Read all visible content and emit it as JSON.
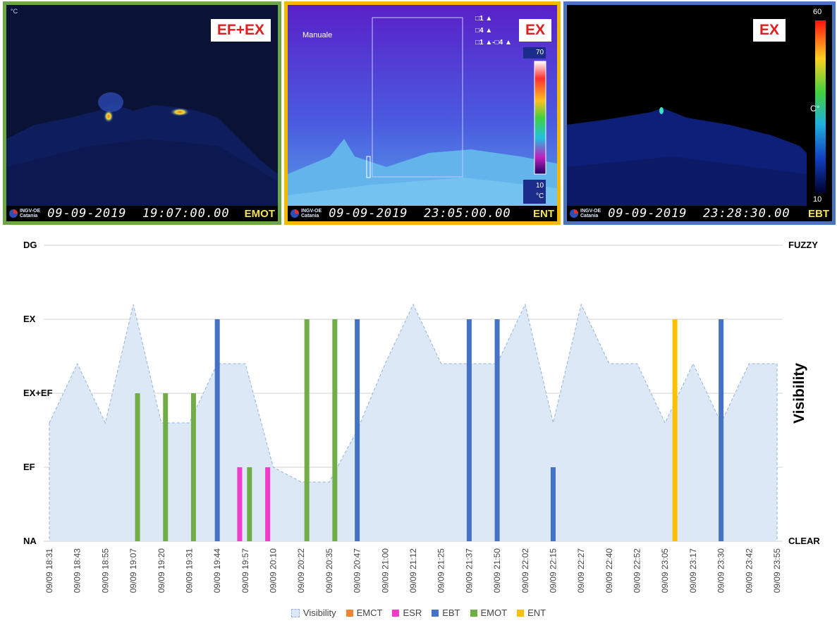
{
  "panels": [
    {
      "badge": "EF+EX",
      "datetime": "09-09-2019  19:07:00.00",
      "code": "EMOT",
      "unit": "°C",
      "logo": {
        "l1": "INGV-OE",
        "l2": "Catania"
      }
    },
    {
      "badge": "EX",
      "datetime": "09-09-2019  23:05:00.00",
      "code": "ENT",
      "mode": "Manuale",
      "legend_lines": [
        "□1 ▲",
        "□4 ▲",
        "□1 ▲-□4 ▲"
      ],
      "scale_max": "70",
      "scale_min": "10",
      "scale_unit": "°C",
      "logo": {
        "l1": "INGV-OE",
        "l2": "Catania"
      }
    },
    {
      "badge": "EX",
      "datetime": "09-09-2019  23:28:30.00",
      "code": "EBT",
      "scale_max": "60",
      "scale_min": "10",
      "scale_unit": "C°",
      "logo": {
        "l1": "INGV-OE",
        "l2": "Catania"
      }
    }
  ],
  "chart_data": {
    "type": "bar",
    "levels": [
      "NA",
      "EF",
      "EX+EF",
      "EX",
      "DG"
    ],
    "y2_labels": {
      "bottom": "CLEAR",
      "top": "FUZZY"
    },
    "y2_title": "Visibility",
    "categories": [
      "09/09 18:31",
      "09/09 18:43",
      "09/09 18:55",
      "09/09 19:07",
      "09/09 19:20",
      "09/09 19:31",
      "09/09 19:44",
      "09/09 19:57",
      "09/09 20:10",
      "09/09 20:22",
      "09/09 20:35",
      "09/09 20:47",
      "09/09 21:00",
      "09/09 21:12",
      "09/09 21:25",
      "09/09 21:37",
      "09/09 21:50",
      "09/09 22:02",
      "09/09 22:15",
      "09/09 22:27",
      "09/09 22:40",
      "09/09 22:52",
      "09/09 23:05",
      "09/09 23:17",
      "09/09 23:30",
      "09/09 23:42",
      "09/09 23:55"
    ],
    "visibility": [
      1.6,
      2.4,
      1.6,
      3.2,
      1.6,
      1.6,
      2.4,
      2.4,
      1.0,
      0.8,
      0.8,
      1.5,
      2.4,
      3.2,
      2.4,
      2.4,
      2.4,
      3.2,
      1.6,
      3.2,
      2.4,
      2.4,
      1.6,
      2.4,
      1.6,
      2.4,
      2.4
    ],
    "series": [
      {
        "name": "Visibility",
        "color": "#dce8f6",
        "line_color": "#8fb3df"
      },
      {
        "name": "EMCT",
        "color": "#f08230",
        "bars": []
      },
      {
        "name": "ESR",
        "color": "#f03cc8",
        "bars": [
          {
            "x": 6.8,
            "level": 1
          },
          {
            "x": 7.8,
            "level": 1
          }
        ]
      },
      {
        "name": "EBT",
        "color": "#4472c4",
        "bars": [
          {
            "x": 6.0,
            "level": 3
          },
          {
            "x": 11.0,
            "level": 3
          },
          {
            "x": 15.0,
            "level": 3
          },
          {
            "x": 16.0,
            "level": 3
          },
          {
            "x": 18.0,
            "level": 1
          },
          {
            "x": 24.0,
            "level": 3
          }
        ]
      },
      {
        "name": "EMOT",
        "color": "#70ad47",
        "bars": [
          {
            "x": 3.15,
            "level": 2
          },
          {
            "x": 4.15,
            "level": 2
          },
          {
            "x": 5.15,
            "level": 2
          },
          {
            "x": 7.15,
            "level": 1
          },
          {
            "x": 9.2,
            "level": 3
          },
          {
            "x": 10.2,
            "level": 3
          }
        ]
      },
      {
        "name": "ENT",
        "color": "#ffc000",
        "bars": [
          {
            "x": 22.35,
            "level": 3
          }
        ]
      }
    ],
    "ylim": [
      0,
      4
    ]
  }
}
